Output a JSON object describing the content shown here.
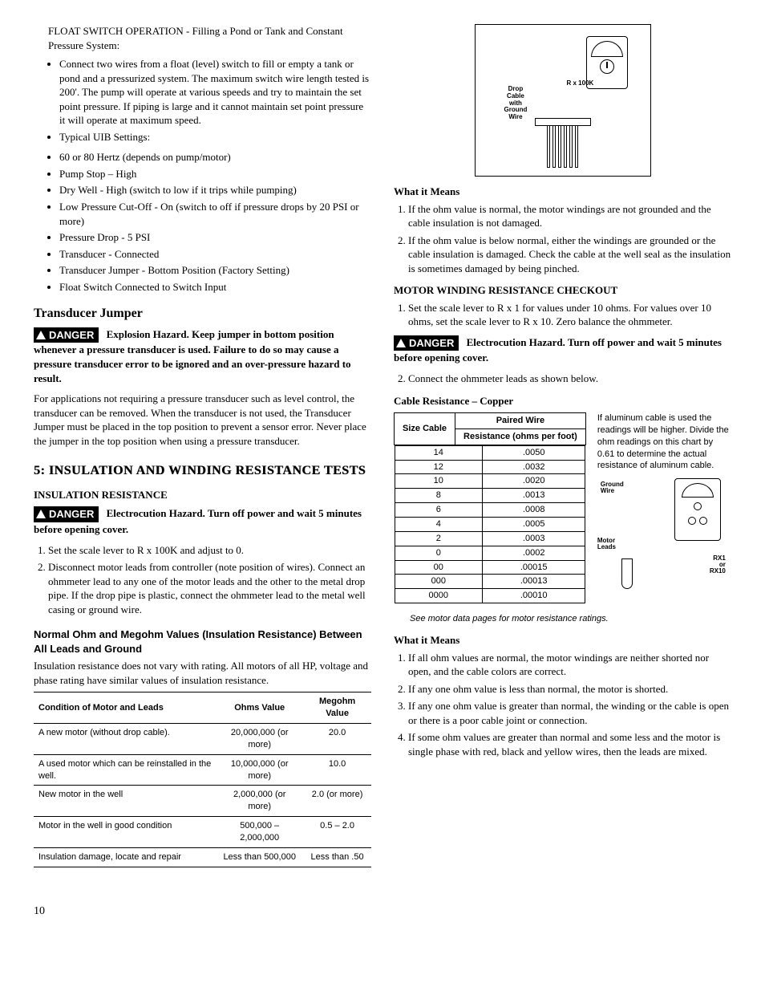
{
  "left": {
    "float_heading": "FLOAT SWITCH OPERATION - Filling a Pond or Tank and Constant Pressure System:",
    "bullets": [
      "Connect two wires from a float (level) switch to fill or empty a tank or pond and a pressurized system. The maximum switch wire length tested is 200'.  The pump will operate at various speeds and try to maintain the set point pressure.  If piping is large and it cannot maintain set point pressure it will operate at maximum speed.",
      "Typical UIB Settings:"
    ],
    "sub_bullets": [
      "60 or 80 Hertz (depends on pump/motor)",
      "Pump Stop – High",
      "Dry Well - High (switch to low if it trips while pumping)",
      "Low Pressure Cut-Off - On (switch to off if pressure drops by 20 PSI or more)",
      "Pressure Drop - 5 PSI",
      "Transducer - Connected",
      "Transducer Jumper - Bottom Position (Factory Setting)",
      "Float Switch Connected to Switch Input"
    ],
    "transducer_h": "Transducer Jumper",
    "danger_label": "DANGER",
    "danger1_text": "Explosion Hazard. Keep jumper in bottom position whenever a pressure transducer is used. Failure to do so may cause a pressure transducer error to be ignored and an over-pressure hazard to result.",
    "transducer_body": "For applications not requiring a pressure transducer such as level control, the transducer can be removed. When the transducer is not used, the Transducer Jumper must be placed in the top position to prevent a sensor error. Never place the jumper in the top position when using a pressure transducer.",
    "section5": "5: INSULATION AND WINDING RESISTANCE TESTS",
    "insul_h": "INSULATION RESISTANCE",
    "danger2_text": "Electrocution Hazard. Turn off power and wait 5 minutes before opening cover.",
    "insul_steps": [
      "Set the scale lever to R x 100K and adjust to 0.",
      "Disconnect motor leads from controller (note position of wires). Connect an ohmmeter lead to any one of the motor leads and the other to the metal drop pipe. If the drop pipe is plastic, connect the ohmmeter lead to the metal well casing or ground wire."
    ],
    "ohm_head": "Normal Ohm and Megohm Values (Insulation Resistance) Between All Leads and Ground",
    "ohm_intro": "Insulation resistance does not vary with rating. All motors of all HP, voltage and phase rating have similar values of insulation resistance.",
    "ohm_table": {
      "headers": [
        "Condition of Motor and Leads",
        "Ohms Value",
        "Megohm Value"
      ],
      "rows": [
        [
          "A new motor (without drop cable).",
          "20,000,000 (or more)",
          "20.0"
        ],
        [
          "A used motor which can be reinstalled in the well.",
          "10,000,000 (or more)",
          "10.0"
        ],
        [
          "New motor in the well",
          "2,000,000 (or more)",
          "2.0 (or more)"
        ],
        [
          "Motor in the well in good condition",
          "500,000 – 2,000,000",
          "0.5 – 2.0"
        ],
        [
          "Insulation damage, locate and repair",
          "Less than 500,000",
          "Less than .50"
        ]
      ]
    }
  },
  "right": {
    "fig1": {
      "rx_label": "R x 100K",
      "cable_label": "Drop\nCable\nwith\nGround\nWire"
    },
    "what1_h": "What it Means",
    "what1_items": [
      "If the ohm value is normal, the motor windings are not grounded and the cable insulation is not damaged.",
      "If the ohm value is below normal, either the windings are grounded or the cable insulation is damaged. Check the cable at the well seal as the insulation is sometimes damaged by being pinched."
    ],
    "mwr_h": "MOTOR WINDING RESISTANCE CHECKOUT",
    "mwr_step1": "Set the scale lever to R x 1 for values under 10 ohms. For values over 10 ohms, set the scale lever to R x 10. Zero balance the ohmmeter.",
    "danger3_text": "Electrocution Hazard. Turn off power and wait 5 minutes before opening cover.",
    "mwr_step2": "Connect the ohmmeter leads as shown below.",
    "cable_h": "Cable Resistance – Copper",
    "cable_table": {
      "size_head": "Size Cable",
      "paired_head": "Paired Wire",
      "res_head": "Resistance (ohms per foot)",
      "rows": [
        [
          "14",
          ".0050"
        ],
        [
          "12",
          ".0032"
        ],
        [
          "10",
          ".0020"
        ],
        [
          "8",
          ".0013"
        ],
        [
          "6",
          ".0008"
        ],
        [
          "4",
          ".0005"
        ],
        [
          "2",
          ".0003"
        ],
        [
          "0",
          ".0002"
        ],
        [
          "00",
          ".00015"
        ],
        [
          "000",
          ".00013"
        ],
        [
          "0000",
          ".00010"
        ]
      ]
    },
    "al_note": "If aluminum cable is used the readings will be higher. Divide the ohm readings on this chart by 0.61 to determine the actual resistance of aluminum cable.",
    "fig2": {
      "ground": "Ground\nWire",
      "motor": "Motor\nLeads",
      "rx": "RX1\nor\nRX10"
    },
    "motor_note": "See motor data pages for motor resistance ratings.",
    "what2_h": "What it Means",
    "what2_items": [
      "If all ohm values are normal, the motor windings are neither shorted nor open, and the cable colors are correct.",
      "If any one ohm value is less than normal, the motor is shorted.",
      "If any one ohm value is greater than normal, the winding or the cable is open or there is a poor cable joint or connection.",
      "If some ohm values are greater than normal and some less and the motor is single phase with red, black and yellow wires, then the leads are mixed."
    ]
  },
  "page_number": "10"
}
